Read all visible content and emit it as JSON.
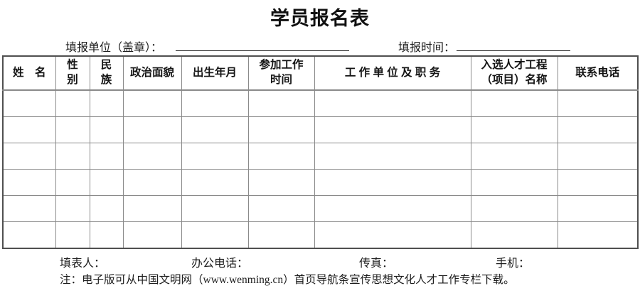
{
  "page": {
    "title": "学员报名表"
  },
  "meta": {
    "unit_label": "填报单位（盖章）：",
    "unit_value": "",
    "time_label": "填报时间：",
    "time_value": ""
  },
  "table": {
    "columns": [
      {
        "label": "姓　名"
      },
      {
        "label": "性\n别"
      },
      {
        "label": "民\n族"
      },
      {
        "label": "政治面貌"
      },
      {
        "label": "出生年月"
      },
      {
        "label": "参加工作\n时间"
      },
      {
        "label": "工 作 单 位 及 职 务"
      },
      {
        "label": "入选人才工程\n（项目）名称"
      },
      {
        "label": "联系电话"
      }
    ],
    "empty_row_count": 6
  },
  "footer": {
    "preparer_label": "填表人：",
    "office_phone_label": "办公电话：",
    "fax_label": "传真：",
    "mobile_label": "手机："
  },
  "note": "注：电子版可从中国文明网（www.wenming.cn）首页导航条宣传思想文化人才工作专栏下载。",
  "colors": {
    "ink": "#1c1c1c",
    "border_outer": "#4f4f4f",
    "border_inner": "#8a8a8a"
  }
}
